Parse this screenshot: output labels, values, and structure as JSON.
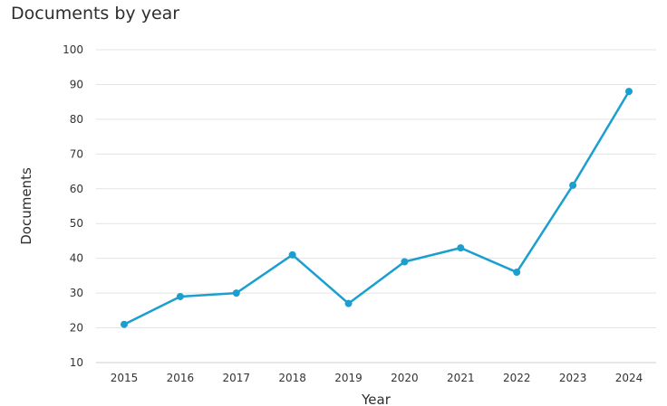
{
  "chart_data": {
    "type": "line",
    "title": "Documents by year",
    "xlabel": "Year",
    "ylabel": "Documents",
    "categories": [
      "2015",
      "2016",
      "2017",
      "2018",
      "2019",
      "2020",
      "2021",
      "2022",
      "2023",
      "2024"
    ],
    "series": [
      {
        "values": [
          21,
          29,
          30,
          41,
          27,
          39,
          43,
          36,
          61,
          88
        ]
      }
    ],
    "yticks": [
      "10",
      "20",
      "30",
      "40",
      "50",
      "60",
      "70",
      "80",
      "90",
      "100"
    ],
    "ylim": [
      10,
      100
    ],
    "grid": true,
    "legend": "none",
    "colors": {
      "line": "#1a9fd0",
      "grid": "#e3e3e3",
      "axis": "#cfcfcf"
    }
  }
}
